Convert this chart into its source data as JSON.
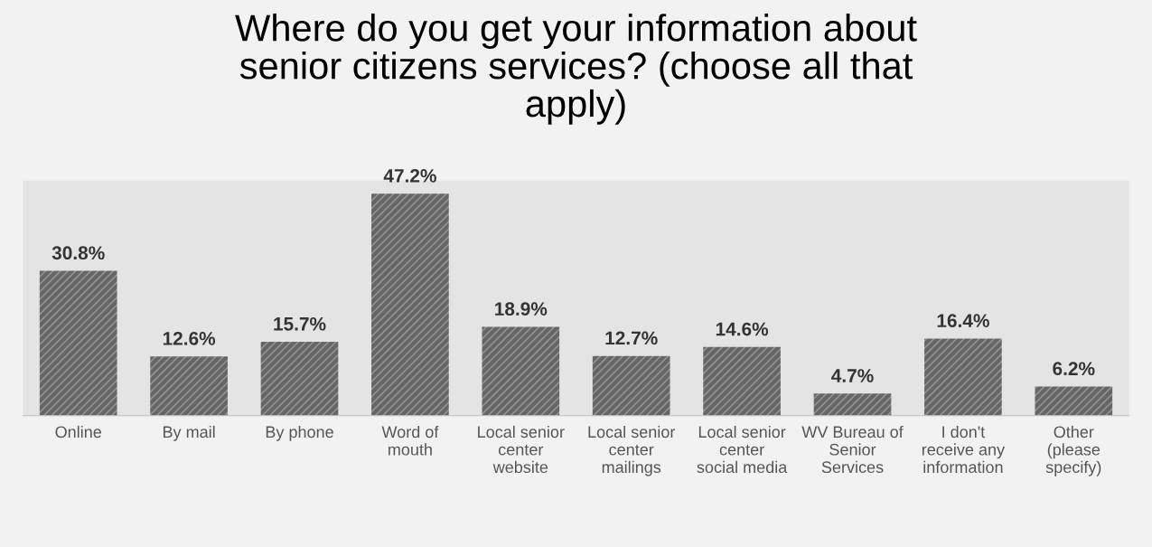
{
  "chart_data": {
    "type": "bar",
    "title": "Where do you get your information about senior citizens services? (choose all that apply)",
    "categories": [
      "Online",
      "By mail",
      "By phone",
      "Word of mouth",
      "Local senior center website",
      "Local senior center mailings",
      "Local senior center social media",
      "WV Bureau of Senior Services",
      "I don't receive any information",
      "Other (please specify)"
    ],
    "values": [
      30.8,
      12.6,
      15.7,
      47.2,
      18.9,
      12.7,
      14.6,
      4.7,
      16.4,
      6.2
    ],
    "value_labels": [
      "30.8%",
      "12.6%",
      "15.7%",
      "47.2%",
      "18.9%",
      "12.7%",
      "14.6%",
      "4.7%",
      "16.4%",
      "6.2%"
    ],
    "color": "#666666",
    "ylim": [
      0,
      50
    ],
    "tick_labels": "x",
    "grid": false,
    "legend": false
  }
}
